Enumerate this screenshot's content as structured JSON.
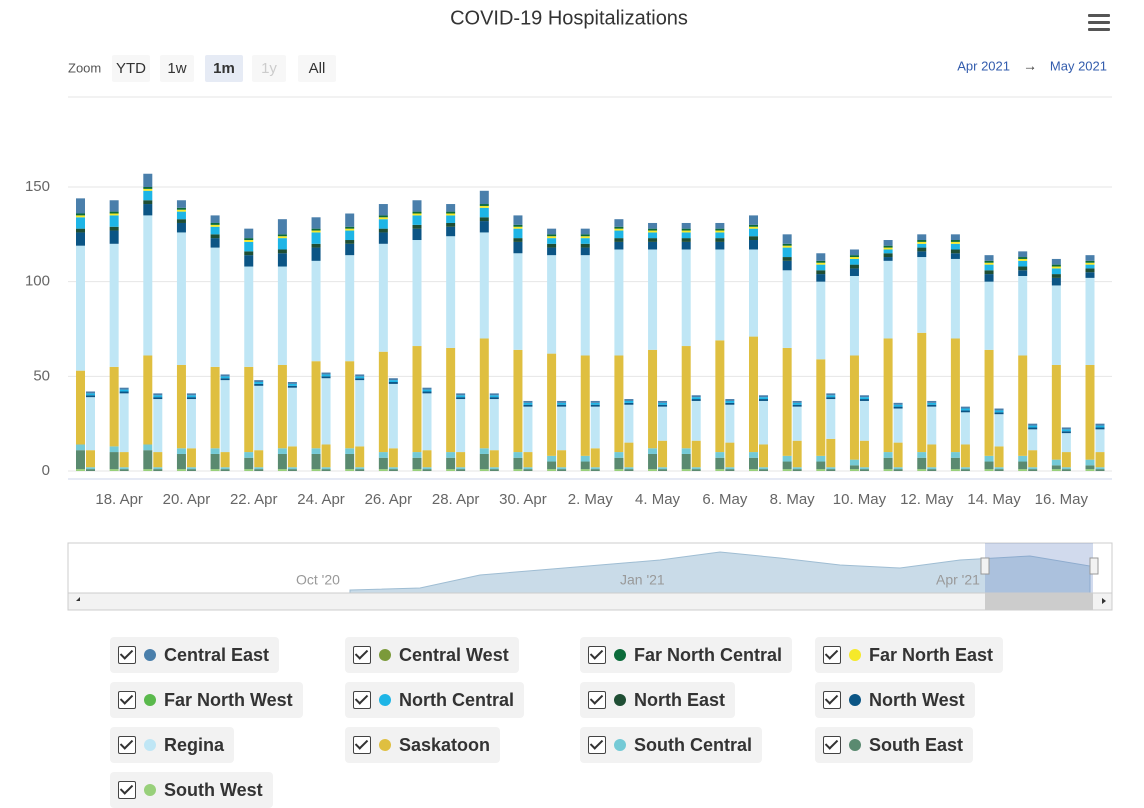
{
  "chart_data": {
    "type": "stacked-column",
    "title": "COVID-19 Hospitalizations",
    "zoom_label": "Zoom",
    "zoom_buttons": [
      "YTD",
      "1w",
      "1m",
      "1y",
      "All"
    ],
    "range_from": "Apr 2021",
    "range_arrow": "→",
    "range_to": "May 2021",
    "navigator_labels": [
      "Oct '20",
      "Jan '21",
      "Apr '21"
    ],
    "categories": [
      null,
      "18. Apr",
      null,
      "20. Apr",
      null,
      "22. Apr",
      null,
      "24. Apr",
      null,
      "26. Apr",
      null,
      "28. Apr",
      null,
      "30. Apr",
      null,
      "2. May",
      null,
      "4. May",
      null,
      "6. May",
      null,
      "8. May",
      null,
      "10. May",
      null,
      "12. May",
      null,
      "14. May",
      null,
      "16. May",
      null
    ],
    "ylim": [
      0,
      160
    ],
    "yticks": [
      0,
      50,
      100,
      150
    ],
    "grid": true,
    "series": [
      {
        "name": "Central East",
        "color": "#4a7fab",
        "values": [
          8,
          6,
          7,
          4,
          4,
          5,
          8,
          6,
          7,
          6,
          6,
          4,
          7,
          5,
          3,
          3,
          4,
          3,
          3,
          3,
          5,
          5,
          4,
          3,
          3,
          3,
          3,
          3,
          3,
          3,
          3
        ],
        "icu_values": [
          1,
          1,
          1,
          1,
          1,
          1,
          1,
          1,
          1,
          1,
          1,
          1,
          1,
          1,
          1,
          1,
          1,
          1,
          1,
          1,
          1,
          1,
          1,
          1,
          1,
          1,
          1,
          1,
          1,
          1,
          1
        ]
      },
      {
        "name": "Central West",
        "color": "#7b9a3a",
        "values": [
          0,
          0,
          0,
          0,
          0,
          0,
          0,
          0,
          0,
          0,
          0,
          0,
          0,
          0,
          0,
          0,
          0,
          0,
          0,
          0,
          0,
          0,
          0,
          0,
          0,
          0,
          0,
          0,
          0,
          0,
          0
        ],
        "icu_values": [
          0,
          0,
          0,
          0,
          0,
          0,
          0,
          0,
          0,
          0,
          0,
          0,
          0,
          0,
          0,
          0,
          0,
          0,
          0,
          0,
          0,
          0,
          0,
          0,
          0,
          0,
          0,
          0,
          0,
          0,
          0
        ]
      },
      {
        "name": "Far North Central",
        "color": "#0b6b3a",
        "values": [
          1,
          1,
          1,
          1,
          1,
          1,
          1,
          1,
          1,
          1,
          1,
          1,
          1,
          1,
          1,
          1,
          1,
          1,
          1,
          1,
          1,
          1,
          1,
          1,
          1,
          1,
          1,
          1,
          1,
          1,
          1
        ],
        "icu_values": [
          0,
          0,
          0,
          0,
          0,
          0,
          0,
          0,
          0,
          0,
          0,
          0,
          0,
          0,
          0,
          0,
          0,
          0,
          0,
          0,
          0,
          0,
          0,
          0,
          0,
          0,
          0,
          0,
          0,
          0,
          0
        ]
      },
      {
        "name": "Far North East",
        "color": "#f5e92a",
        "values": [
          1,
          1,
          1,
          1,
          1,
          1,
          1,
          1,
          1,
          1,
          1,
          1,
          1,
          1,
          1,
          1,
          1,
          1,
          1,
          1,
          1,
          1,
          1,
          1,
          1,
          1,
          1,
          1,
          1,
          1,
          1
        ],
        "icu_values": [
          0,
          0,
          0,
          0,
          0,
          0,
          0,
          0,
          0,
          0,
          0,
          0,
          0,
          0,
          0,
          0,
          0,
          0,
          0,
          0,
          0,
          0,
          0,
          0,
          0,
          0,
          0,
          0,
          0,
          0,
          0
        ]
      },
      {
        "name": "Far North West",
        "color": "#5ab94c",
        "values": [
          0,
          0,
          0,
          0,
          0,
          0,
          0,
          0,
          0,
          0,
          0,
          0,
          0,
          0,
          0,
          0,
          0,
          0,
          0,
          0,
          0,
          0,
          0,
          0,
          0,
          0,
          0,
          0,
          0,
          0,
          0
        ],
        "icu_values": [
          0,
          0,
          0,
          0,
          0,
          0,
          0,
          0,
          0,
          0,
          0,
          0,
          0,
          0,
          0,
          0,
          0,
          0,
          0,
          0,
          0,
          0,
          0,
          0,
          0,
          0,
          0,
          0,
          0,
          0,
          0
        ]
      },
      {
        "name": "North Central",
        "color": "#1eb5e6",
        "values": [
          6,
          6,
          5,
          4,
          4,
          5,
          6,
          6,
          5,
          5,
          5,
          4,
          5,
          5,
          3,
          3,
          4,
          3,
          3,
          3,
          4,
          5,
          3,
          3,
          2,
          2,
          3,
          3,
          3,
          3,
          2
        ],
        "icu_values": [
          1,
          1,
          1,
          1,
          1,
          1,
          1,
          1,
          1,
          1,
          1,
          1,
          1,
          1,
          1,
          1,
          1,
          1,
          1,
          1,
          1,
          1,
          1,
          1,
          1,
          1,
          1,
          1,
          1,
          1,
          1
        ]
      },
      {
        "name": "North East",
        "color": "#1f4e34",
        "values": [
          2,
          2,
          2,
          2,
          2,
          2,
          2,
          2,
          2,
          2,
          2,
          2,
          2,
          2,
          2,
          2,
          2,
          2,
          2,
          2,
          2,
          2,
          2,
          2,
          2,
          2,
          2,
          2,
          2,
          2,
          2
        ],
        "icu_values": [
          0,
          0,
          0,
          0,
          0,
          0,
          0,
          0,
          0,
          0,
          0,
          0,
          0,
          0,
          0,
          0,
          0,
          0,
          0,
          0,
          0,
          0,
          0,
          0,
          0,
          0,
          0,
          0,
          0,
          0,
          0
        ]
      },
      {
        "name": "North West",
        "color": "#0b5585",
        "values": [
          7,
          7,
          6,
          5,
          5,
          6,
          7,
          7,
          6,
          6,
          6,
          5,
          6,
          6,
          4,
          4,
          4,
          4,
          4,
          4,
          5,
          5,
          4,
          4,
          2,
          3,
          3,
          4,
          3,
          4,
          3
        ],
        "icu_values": [
          1,
          1,
          1,
          1,
          1,
          1,
          1,
          1,
          1,
          1,
          1,
          1,
          1,
          1,
          1,
          1,
          1,
          1,
          1,
          1,
          1,
          1,
          1,
          1,
          1,
          1,
          1,
          1,
          1,
          1,
          1
        ]
      },
      {
        "name": "Regina",
        "color": "#bfe6f5",
        "values": [
          66,
          65,
          74,
          70,
          63,
          53,
          52,
          53,
          56,
          57,
          56,
          59,
          56,
          51,
          52,
          53,
          56,
          53,
          51,
          48,
          46,
          41,
          41,
          42,
          41,
          40,
          42,
          36,
          42,
          42,
          46
        ],
        "icu_values": [
          28,
          31,
          28,
          26,
          38,
          34,
          31,
          35,
          35,
          34,
          30,
          28,
          27,
          24,
          23,
          22,
          20,
          18,
          21,
          20,
          23,
          18,
          21,
          21,
          18,
          20,
          17,
          17,
          11,
          10,
          12
        ]
      },
      {
        "name": "Saskatoon",
        "color": "#dfbf40",
        "values": [
          39,
          42,
          47,
          44,
          43,
          45,
          44,
          46,
          46,
          53,
          56,
          55,
          58,
          54,
          54,
          53,
          51,
          52,
          54,
          59,
          61,
          57,
          51,
          55,
          60,
          63,
          60,
          56,
          53,
          50,
          50
        ],
        "icu_values": [
          9,
          8,
          8,
          10,
          8,
          9,
          11,
          12,
          11,
          10,
          9,
          8,
          9,
          8,
          9,
          10,
          13,
          14,
          14,
          13,
          12,
          14,
          15,
          14,
          13,
          12,
          12,
          11,
          9,
          8,
          8
        ]
      },
      {
        "name": "South Central",
        "color": "#74cad6",
        "values": [
          3,
          3,
          3,
          3,
          3,
          3,
          3,
          3,
          3,
          3,
          3,
          3,
          3,
          3,
          3,
          3,
          3,
          3,
          3,
          3,
          3,
          3,
          3,
          3,
          3,
          3,
          3,
          3,
          3,
          3,
          3
        ],
        "icu_values": [
          1,
          1,
          1,
          1,
          1,
          1,
          1,
          1,
          1,
          1,
          1,
          1,
          1,
          1,
          1,
          1,
          1,
          1,
          1,
          1,
          1,
          1,
          1,
          1,
          1,
          1,
          1,
          1,
          1,
          1,
          1
        ]
      },
      {
        "name": "South East",
        "color": "#5a8a70",
        "values": [
          10,
          9,
          10,
          8,
          8,
          6,
          8,
          8,
          8,
          6,
          6,
          6,
          8,
          6,
          4,
          4,
          6,
          8,
          8,
          6,
          6,
          4,
          4,
          2,
          6,
          6,
          6,
          4,
          4,
          2,
          2
        ],
        "icu_values": [
          1,
          1,
          1,
          1,
          1,
          1,
          1,
          1,
          1,
          1,
          1,
          1,
          1,
          1,
          1,
          1,
          1,
          1,
          1,
          1,
          1,
          1,
          1,
          1,
          1,
          1,
          1,
          1,
          1,
          1,
          1
        ]
      },
      {
        "name": "South West",
        "color": "#98d07a",
        "values": [
          1,
          1,
          1,
          1,
          1,
          1,
          1,
          1,
          1,
          1,
          1,
          1,
          1,
          1,
          1,
          1,
          1,
          1,
          1,
          1,
          1,
          1,
          1,
          1,
          1,
          1,
          1,
          1,
          1,
          1,
          1
        ],
        "icu_values": [
          0,
          0,
          0,
          0,
          0,
          0,
          0,
          0,
          0,
          0,
          0,
          0,
          0,
          0,
          0,
          0,
          0,
          0,
          0,
          0,
          0,
          0,
          0,
          0,
          0,
          0,
          0,
          0,
          0,
          0,
          0
        ]
      }
    ]
  }
}
